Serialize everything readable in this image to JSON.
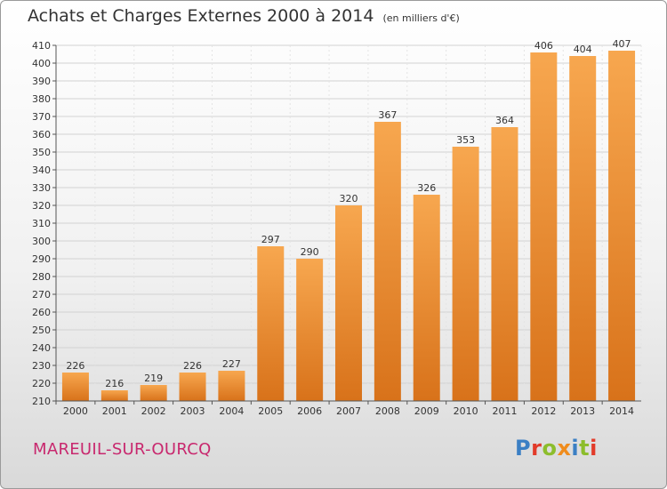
{
  "header": {
    "title": "Achats et Charges Externes 2000 à 2014",
    "subtitle": "(en milliers d'€)"
  },
  "footer": {
    "commune": "MAREUIL-SUR-OURCQ",
    "logo_text": "Proxiti",
    "logo_colors": [
      "#3b7fc4",
      "#e23b2a",
      "#8cbd2c",
      "#f08c1c",
      "#3b7fc4",
      "#8cbd2c",
      "#e23b2a"
    ]
  },
  "colors": {
    "bar_light": "#f7a74f",
    "bar_dark": "#d8721a",
    "commune": "#c8286e"
  },
  "chart_data": {
    "type": "bar",
    "categories": [
      "2000",
      "2001",
      "2002",
      "2003",
      "2004",
      "2005",
      "2006",
      "2007",
      "2008",
      "2009",
      "2010",
      "2011",
      "2012",
      "2013",
      "2014"
    ],
    "values": [
      226,
      216,
      219,
      226,
      227,
      297,
      290,
      320,
      367,
      326,
      353,
      364,
      406,
      404,
      407
    ],
    "ylim": [
      210,
      410
    ],
    "ytick_step": 10,
    "grid": "horizontal"
  }
}
